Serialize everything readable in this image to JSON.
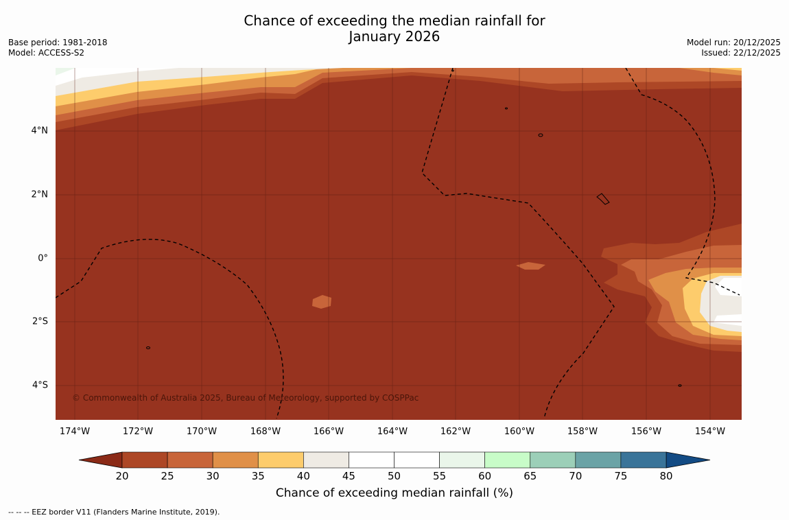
{
  "title": {
    "line1": "Chance of exceeding the median rainfall for",
    "line2": "January 2026"
  },
  "meta": {
    "base_period": "Base period: 1981-2018",
    "model": "Model: ACCESS-S2",
    "model_run": "Model run: 20/12/2025",
    "issued": "Issued: 22/12/2025"
  },
  "map": {
    "lat_labels": [
      "4°N",
      "2°N",
      "0°",
      "2°S",
      "4°S"
    ],
    "lon_labels": [
      "174°W",
      "172°W",
      "170°W",
      "168°W",
      "166°W",
      "164°W",
      "162°W",
      "160°W",
      "158°W",
      "156°W",
      "154°W"
    ],
    "copyright": "© Commonwealth of Australia 2025, Bureau of Meteorology, supported by COSPPac",
    "base_color": "#97331f"
  },
  "colorbar": {
    "ticks": [
      "20",
      "25",
      "30",
      "35",
      "40",
      "45",
      "50",
      "55",
      "60",
      "65",
      "70",
      "75",
      "80"
    ],
    "colors": [
      "#ad4726",
      "#c8653a",
      "#e09048",
      "#fdcc6c",
      "#efebe4",
      "#ffffff",
      "#ffffff",
      "#eaf6ea",
      "#c8fcc8",
      "#9ccfb8",
      "#6ba3a6",
      "#3a7499"
    ],
    "under_color": "#8b2a17",
    "over_color": "#134b84",
    "label": "Chance of exceeding median rainfall (%)"
  },
  "legend": {
    "eez": "--  --  -- EEZ border V11 (Flanders Marine Institute, 2019)."
  }
}
